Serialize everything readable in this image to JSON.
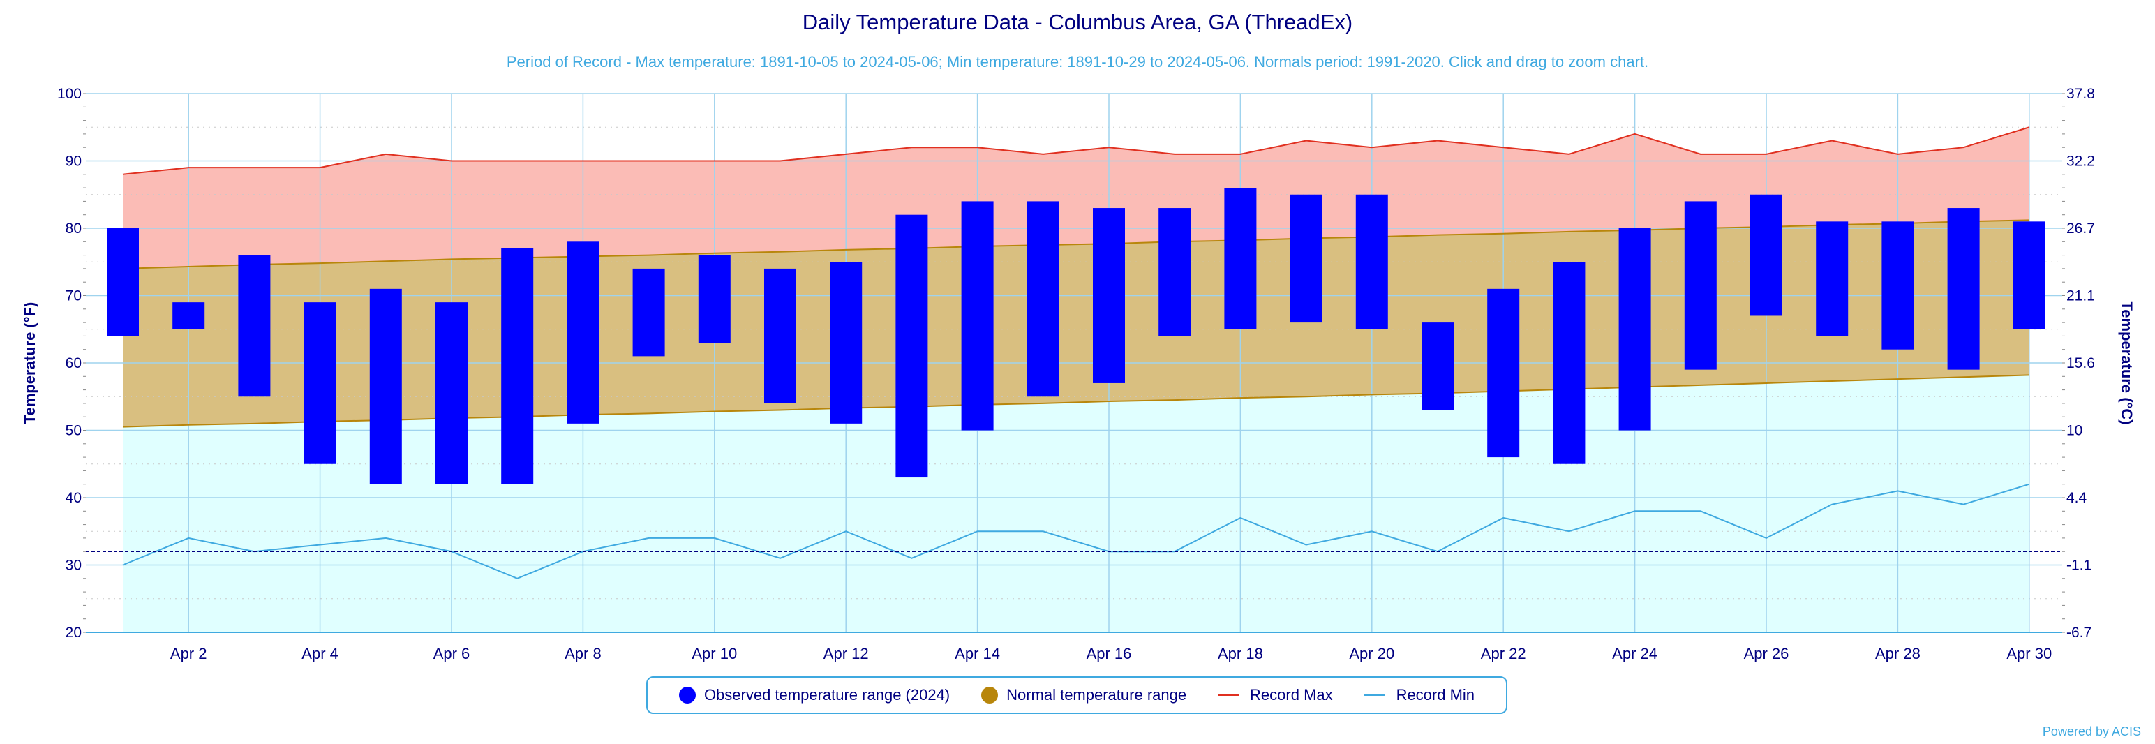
{
  "chart_data": {
    "type": "bar",
    "title": "Daily Temperature Data - Columbus Area, GA (ThreadEx)",
    "subtitle": "Period of Record - Max temperature: 1891-10-05 to 2024-05-06; Min temperature: 1891-10-29 to 2024-05-06. Normals period: 1991-2020. Click and drag to zoom chart.",
    "ylabel": "Temperature (°F)",
    "y2label": "Temperature (°C)",
    "ylim": [
      20,
      100
    ],
    "yticks": [
      "100",
      "90",
      "80",
      "70",
      "60",
      "50",
      "40",
      "30",
      "20"
    ],
    "y2ticks": [
      "37.8",
      "32.2",
      "26.7",
      "21.1",
      "15.6",
      "10",
      "4.4",
      "-1.1",
      "-6.7"
    ],
    "x": [
      1,
      2,
      3,
      4,
      5,
      6,
      7,
      8,
      9,
      10,
      11,
      12,
      13,
      14,
      15,
      16,
      17,
      18,
      19,
      20,
      21,
      22,
      23,
      24,
      25,
      26,
      27,
      28,
      29,
      30
    ],
    "xtick_labels": [
      "Apr 2",
      "Apr 4",
      "Apr 6",
      "Apr 8",
      "Apr 10",
      "Apr 12",
      "Apr 14",
      "Apr 16",
      "Apr 18",
      "Apr 20",
      "Apr 22",
      "Apr 24",
      "Apr 26",
      "Apr 28",
      "Apr 30"
    ],
    "reference_line": 32,
    "grid": true,
    "legend_position": "bottom",
    "series": [
      {
        "name": "Observed temperature range (2024)",
        "color": "#0000ff",
        "high": [
          80,
          69,
          76,
          69,
          71,
          69,
          77,
          78,
          74,
          76,
          74,
          75,
          82,
          84,
          84,
          83,
          83,
          86,
          85,
          85,
          66,
          71,
          75,
          80,
          84,
          85,
          81,
          81,
          83,
          81
        ],
        "low": [
          64,
          65,
          55,
          45,
          42,
          42,
          42,
          51,
          61,
          63,
          54,
          51,
          43,
          50,
          55,
          57,
          64,
          65,
          66,
          65,
          53,
          46,
          45,
          50,
          59,
          67,
          64,
          62,
          59,
          65
        ]
      },
      {
        "name": "Normal temperature range",
        "color": "#b8860b",
        "high": [
          74.0,
          74.3,
          74.6,
          74.8,
          75.1,
          75.4,
          75.6,
          75.8,
          76.0,
          76.3,
          76.5,
          76.8,
          77.0,
          77.3,
          77.5,
          77.7,
          78.0,
          78.2,
          78.5,
          78.7,
          79.0,
          79.2,
          79.5,
          79.7,
          80.0,
          80.2,
          80.5,
          80.7,
          81.0,
          81.2
        ],
        "low": [
          50.5,
          50.8,
          51.0,
          51.3,
          51.5,
          51.8,
          52.0,
          52.3,
          52.5,
          52.8,
          53.0,
          53.3,
          53.5,
          53.8,
          54.0,
          54.3,
          54.5,
          54.8,
          55.0,
          55.3,
          55.5,
          55.8,
          56.1,
          56.4,
          56.7,
          57.0,
          57.3,
          57.6,
          57.9,
          58.2
        ]
      },
      {
        "name": "Record Max",
        "color": "#e03020",
        "values": [
          88,
          89,
          89,
          89,
          91,
          90,
          90,
          90,
          90,
          90,
          90,
          91,
          92,
          92,
          91,
          92,
          91,
          91,
          93,
          92,
          93,
          92,
          91,
          94,
          91,
          91,
          93,
          91,
          92,
          95
        ]
      },
      {
        "name": "Record Min",
        "color": "#3fa9e0",
        "values": [
          30,
          34,
          32,
          33,
          34,
          32,
          28,
          32,
          34,
          34,
          31,
          35,
          31,
          35,
          35,
          32,
          32,
          37,
          33,
          35,
          32,
          37,
          35,
          38,
          38,
          34,
          39,
          41,
          39,
          42
        ]
      }
    ]
  },
  "credit": "Powered by ACIS"
}
